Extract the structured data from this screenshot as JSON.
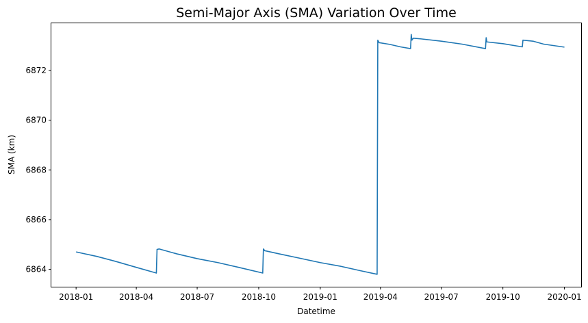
{
  "chart_data": {
    "type": "line",
    "title": "Semi-Major Axis (SMA) Variation Over Time",
    "xlabel": "Datetime",
    "ylabel": "SMA (km)",
    "xlim": [
      "2017-11-25",
      "2020-01-26"
    ],
    "ylim": [
      6863.3,
      6873.9
    ],
    "x_ticks": [
      "2018-01",
      "2018-04",
      "2018-07",
      "2018-10",
      "2019-01",
      "2019-04",
      "2019-07",
      "2019-10",
      "2020-01"
    ],
    "y_ticks": [
      6864,
      6866,
      6868,
      6870,
      6872
    ],
    "grid": false,
    "legend": "none",
    "series": [
      {
        "color": "#1f77b4",
        "points": [
          [
            "2018-01-01",
            6864.7
          ],
          [
            "2018-02-01",
            6864.52
          ],
          [
            "2018-03-01",
            6864.32
          ],
          [
            "2018-04-01",
            6864.08
          ],
          [
            "2018-05-01",
            6863.85
          ],
          [
            "2018-05-02",
            6864.8
          ],
          [
            "2018-05-05",
            6864.82
          ],
          [
            "2018-06-01",
            6864.62
          ],
          [
            "2018-07-01",
            6864.43
          ],
          [
            "2018-08-01",
            6864.27
          ],
          [
            "2018-09-01",
            6864.08
          ],
          [
            "2018-10-07",
            6863.85
          ],
          [
            "2018-10-08",
            6864.82
          ],
          [
            "2018-10-10",
            6864.75
          ],
          [
            "2018-11-01",
            6864.62
          ],
          [
            "2018-12-01",
            6864.45
          ],
          [
            "2019-01-01",
            6864.27
          ],
          [
            "2019-02-01",
            6864.12
          ],
          [
            "2019-03-01",
            6863.95
          ],
          [
            "2019-03-27",
            6863.8
          ],
          [
            "2019-03-28",
            6873.22
          ],
          [
            "2019-03-30",
            6873.12
          ],
          [
            "2019-04-15",
            6873.05
          ],
          [
            "2019-05-01",
            6872.95
          ],
          [
            "2019-05-16",
            6872.88
          ],
          [
            "2019-05-17",
            6873.45
          ],
          [
            "2019-05-18",
            6873.22
          ],
          [
            "2019-05-20",
            6873.3
          ],
          [
            "2019-06-01",
            6873.27
          ],
          [
            "2019-07-01",
            6873.18
          ],
          [
            "2019-08-01",
            6873.06
          ],
          [
            "2019-09-05",
            6872.88
          ],
          [
            "2019-09-06",
            6873.32
          ],
          [
            "2019-09-07",
            6873.15
          ],
          [
            "2019-10-01",
            6873.08
          ],
          [
            "2019-10-30",
            6872.95
          ],
          [
            "2019-10-31",
            6873.22
          ],
          [
            "2019-11-15",
            6873.18
          ],
          [
            "2019-12-01",
            6873.06
          ],
          [
            "2020-01-01",
            6872.94
          ]
        ]
      }
    ]
  }
}
